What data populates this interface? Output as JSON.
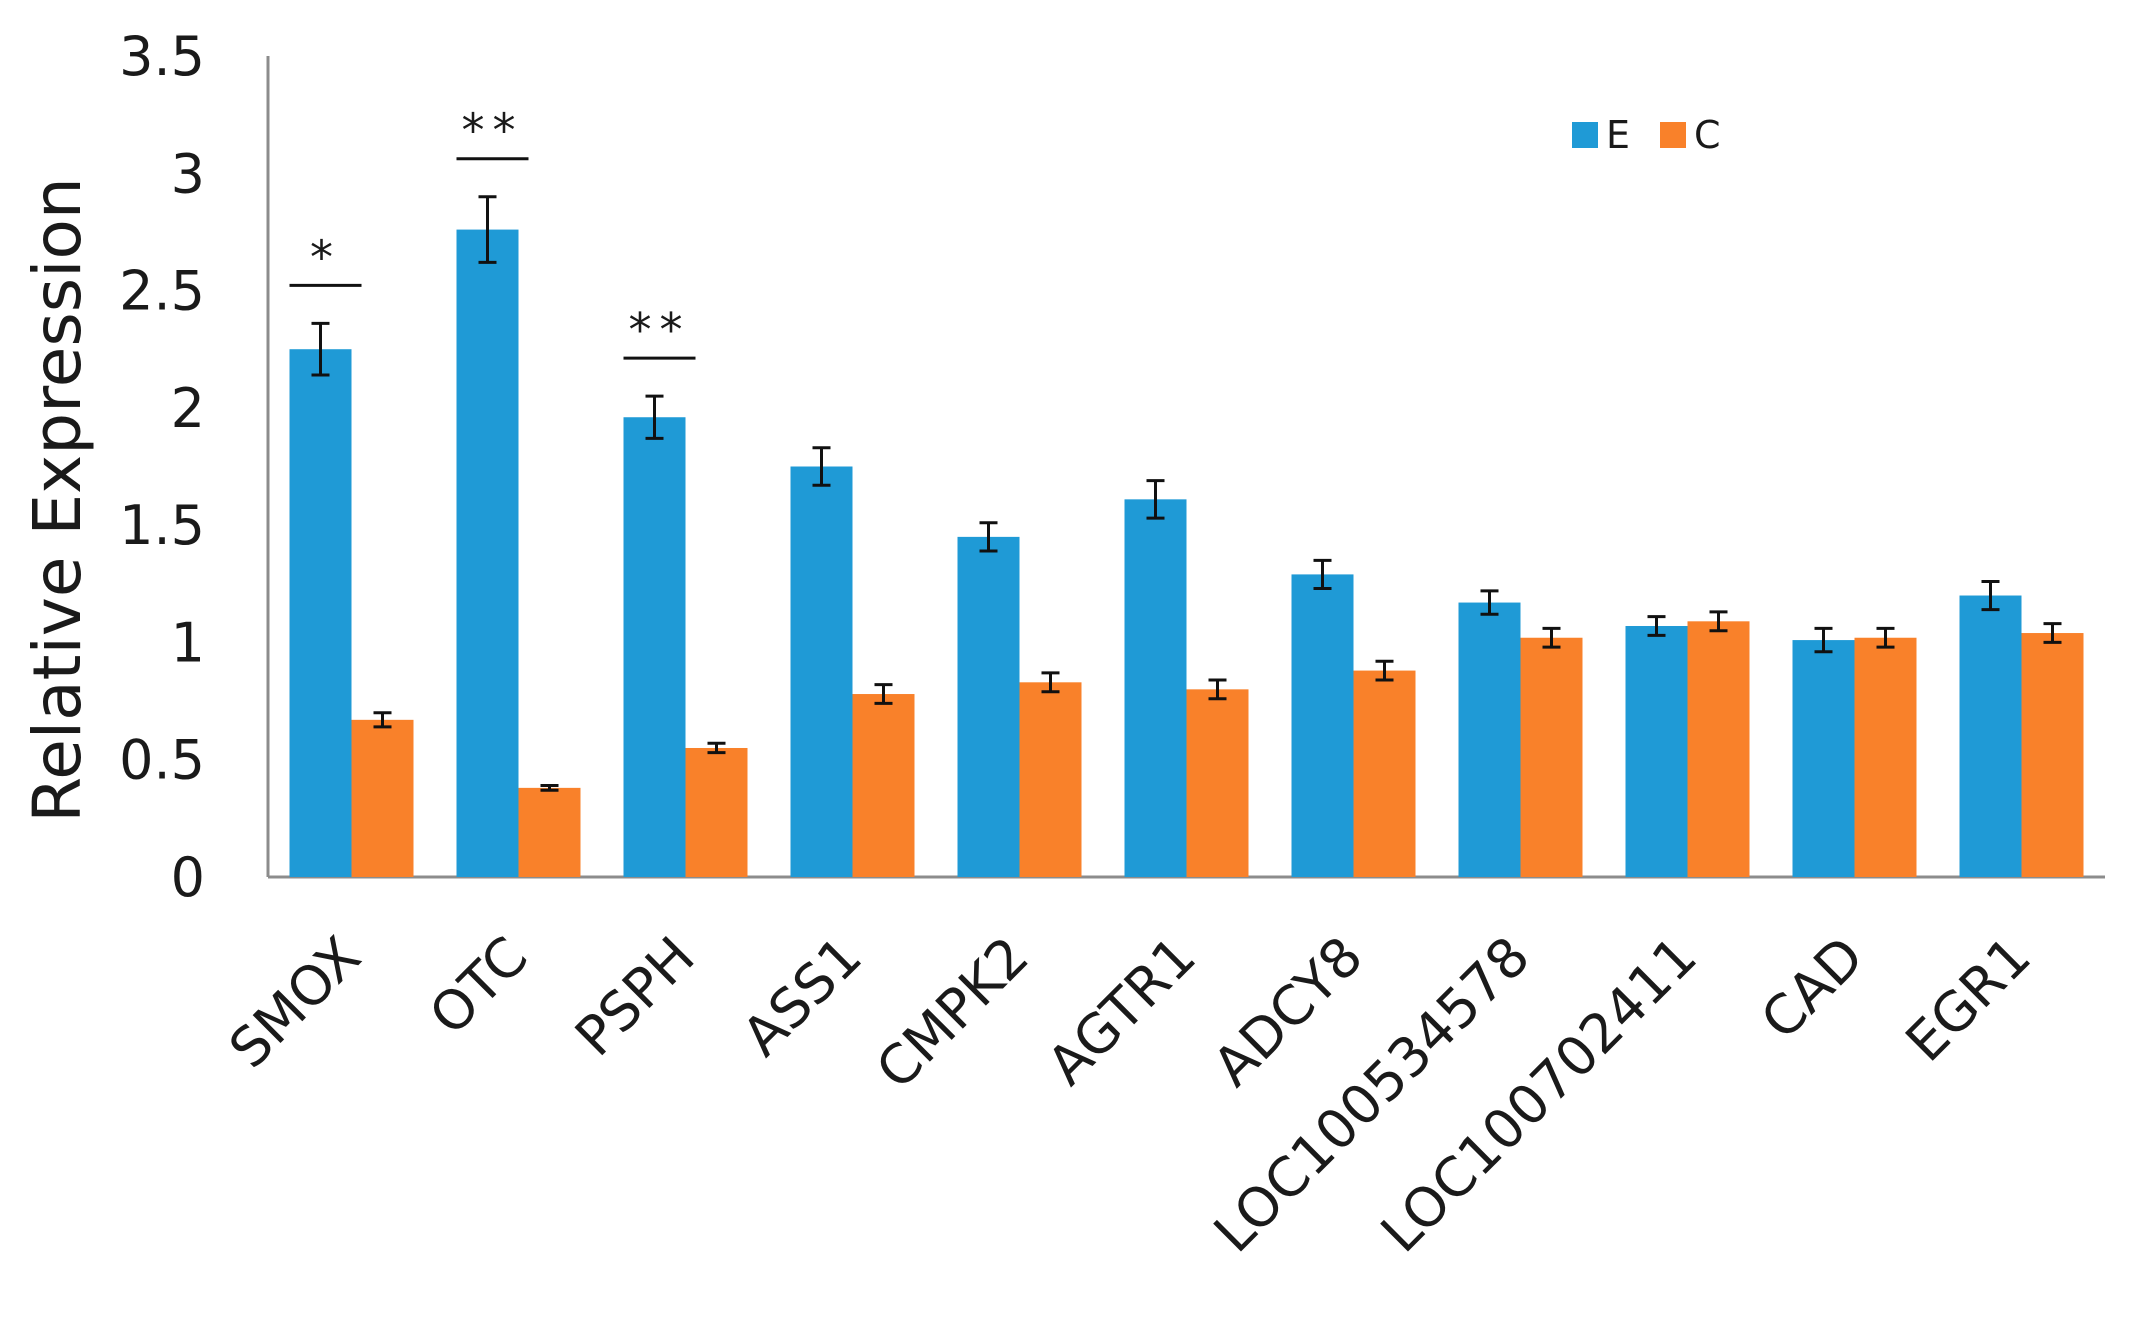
{
  "chart_data": {
    "type": "bar",
    "ylabel": "Relative  Expression",
    "xlabel": "",
    "ylim": [
      0,
      3.5
    ],
    "yticks": [
      "0",
      "0.5",
      "1",
      "1.5",
      "2",
      "2.5",
      "3",
      "3.5"
    ],
    "categories": [
      "SMOX",
      "OTC",
      "PSPH",
      "ASS1",
      "CMPK2",
      "AGTR1",
      "ADCY8",
      "LOC100534578",
      "LOC100702411",
      "CAD",
      "EGR1"
    ],
    "series": [
      {
        "name": "E",
        "color": "#1f9ad6",
        "values": [
          2.25,
          2.76,
          1.96,
          1.75,
          1.45,
          1.61,
          1.29,
          1.17,
          1.07,
          1.01,
          1.2
        ],
        "errors": [
          0.11,
          0.14,
          0.09,
          0.08,
          0.06,
          0.08,
          0.06,
          0.05,
          0.04,
          0.05,
          0.06
        ]
      },
      {
        "name": "C",
        "color": "#f9812a",
        "values": [
          0.67,
          0.38,
          0.55,
          0.78,
          0.83,
          0.8,
          0.88,
          1.02,
          1.09,
          1.02,
          1.04
        ],
        "errors": [
          0.03,
          0.01,
          0.02,
          0.04,
          0.04,
          0.04,
          0.04,
          0.04,
          0.04,
          0.04,
          0.04
        ]
      }
    ],
    "annotations": [
      {
        "category": "SMOX",
        "text": "*"
      },
      {
        "category": "OTC",
        "text": "**"
      },
      {
        "category": "PSPH",
        "text": "**"
      }
    ],
    "legend": {
      "position": "top-right",
      "items": [
        "E",
        "C"
      ]
    },
    "grid": false
  }
}
